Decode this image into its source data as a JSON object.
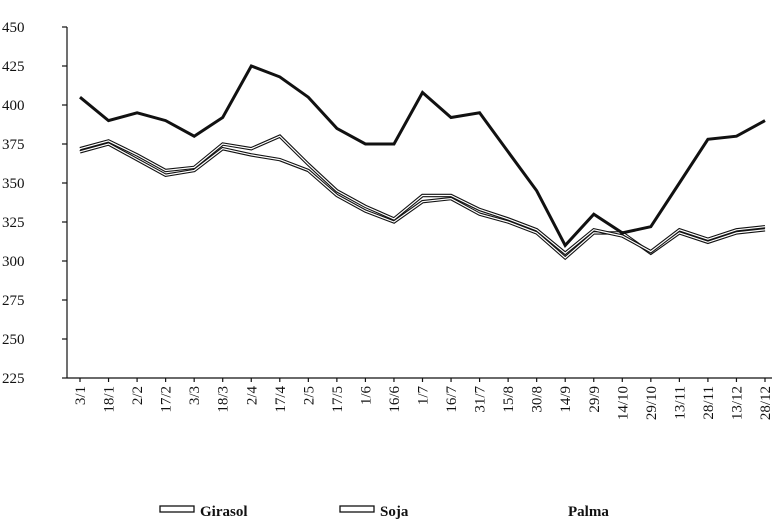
{
  "chart_data": {
    "type": "line",
    "categories": [
      "3/1",
      "18/1",
      "2/2",
      "17/2",
      "3/3",
      "18/3",
      "2/4",
      "17/4",
      "2/5",
      "17/5",
      "1/6",
      "16/6",
      "1/7",
      "16/7",
      "31/7",
      "15/8",
      "30/8",
      "14/9",
      "29/9",
      "14/10",
      "29/10",
      "13/11",
      "28/11",
      "13/12",
      "28/12"
    ],
    "series": [
      {
        "name": "Girasol",
        "color": "#111111",
        "values": [
          370,
          375,
          365,
          355,
          358,
          372,
          368,
          365,
          358,
          342,
          332,
          325,
          338,
          340,
          330,
          325,
          318,
          302,
          318,
          318,
          305,
          318,
          312,
          318,
          320
        ]
      },
      {
        "name": "Soja",
        "color": "#111111",
        "values": [
          372,
          377,
          368,
          358,
          360,
          375,
          372,
          380,
          362,
          345,
          335,
          327,
          342,
          342,
          333,
          327,
          320,
          305,
          320,
          316,
          306,
          320,
          314,
          320,
          322
        ]
      },
      {
        "name": "Palma",
        "color": "#111111",
        "values": [
          405,
          390,
          395,
          390,
          380,
          392,
          425,
          418,
          405,
          385,
          375,
          375,
          408,
          392,
          395,
          370,
          345,
          310,
          330,
          318,
          322,
          350,
          378,
          380,
          390
        ]
      }
    ],
    "ylim": [
      225,
      450
    ],
    "yticks": [
      225,
      250,
      275,
      300,
      325,
      350,
      375,
      400,
      425,
      450
    ]
  }
}
